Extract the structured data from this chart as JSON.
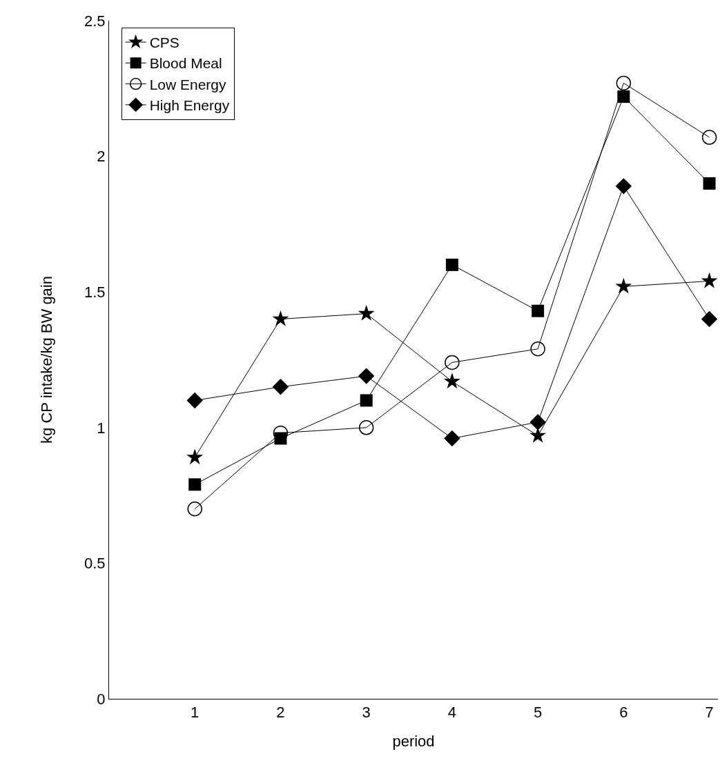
{
  "chart_data": {
    "type": "line",
    "xlabel": "period",
    "ylabel": "kg CP intake/kg BW gain",
    "x": [
      1,
      2,
      3,
      4,
      5,
      6,
      7
    ],
    "series": [
      {
        "name": "CPS",
        "color": "#000000",
        "marker": "star",
        "values": [
          0.89,
          1.4,
          1.42,
          1.17,
          0.97,
          1.52,
          1.54
        ]
      },
      {
        "name": "Blood Meal",
        "color": "#000000",
        "marker": "square",
        "values": [
          0.79,
          0.96,
          1.1,
          1.6,
          1.43,
          2.22,
          1.9
        ]
      },
      {
        "name": "Low Energy",
        "color": "#000000",
        "marker": "circle",
        "values": [
          0.7,
          0.98,
          1.0,
          1.24,
          1.29,
          2.27,
          2.07
        ]
      },
      {
        "name": "High Energy",
        "color": "#000000",
        "marker": "diamond",
        "values": [
          1.1,
          1.15,
          1.19,
          0.96,
          1.02,
          1.89,
          1.4
        ]
      }
    ],
    "xlim": [
      0,
      7.1
    ],
    "xticks": [
      1,
      2,
      3,
      4,
      5,
      6,
      7
    ],
    "ylim": [
      0,
      2.5
    ],
    "yticks": [
      0,
      0.5,
      1,
      1.5,
      2,
      2.5
    ],
    "grid": false,
    "legend": "top left"
  }
}
